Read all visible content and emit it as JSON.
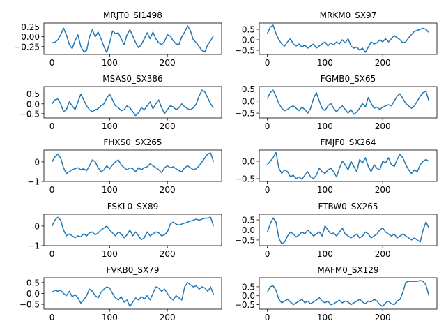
{
  "figure": {
    "line_color": "#1f77b4"
  },
  "chart_data": [
    {
      "type": "line",
      "title": "MRJT0_SI1498",
      "xlim": [
        -14,
        294
      ],
      "ylim": [
        -0.45,
        0.35
      ],
      "xticks": [
        0,
        100,
        200
      ],
      "yticks": [
        0.25,
        0.0,
        -0.25
      ],
      "yticklabels": [
        "0.25",
        "0.00",
        "−0.25"
      ],
      "x": [
        0,
        5,
        10,
        15,
        20,
        25,
        30,
        35,
        40,
        45,
        50,
        55,
        60,
        65,
        70,
        75,
        80,
        85,
        90,
        95,
        100,
        105,
        110,
        115,
        120,
        125,
        130,
        135,
        140,
        145,
        150,
        155,
        160,
        165,
        170,
        175,
        180,
        185,
        190,
        195,
        200,
        205,
        210,
        215,
        220,
        225,
        230,
        235,
        240,
        245,
        250,
        255,
        260,
        265,
        270,
        275,
        280
      ],
      "y": [
        -0.15,
        -0.14,
        -0.08,
        0.05,
        0.22,
        0.05,
        -0.2,
        -0.3,
        -0.1,
        0.05,
        -0.25,
        -0.38,
        -0.35,
        0.0,
        0.18,
        0.0,
        0.12,
        -0.05,
        -0.25,
        -0.4,
        -0.15,
        0.15,
        0.08,
        0.1,
        -0.05,
        -0.2,
        0.05,
        0.18,
        0.02,
        -0.15,
        -0.28,
        -0.2,
        -0.05,
        0.1,
        -0.05,
        0.12,
        -0.05,
        -0.15,
        -0.2,
        -0.12,
        0.05,
        0.02,
        -0.1,
        -0.18,
        -0.2,
        0.0,
        0.12,
        0.28,
        0.15,
        -0.08,
        -0.15,
        -0.25,
        -0.35,
        -0.38,
        -0.2,
        -0.1,
        0.03
      ]
    },
    {
      "type": "line",
      "title": "MRKM0_SX97",
      "xlim": [
        -14,
        294
      ],
      "ylim": [
        -0.7,
        0.8
      ],
      "xticks": [
        0,
        100,
        200
      ],
      "yticks": [
        0.5,
        0.0,
        -0.5
      ],
      "yticklabels": [
        "0.5",
        "0.0",
        "−0.5"
      ],
      "x": [
        0,
        5,
        10,
        15,
        20,
        25,
        30,
        35,
        40,
        45,
        50,
        55,
        60,
        65,
        70,
        75,
        80,
        85,
        90,
        95,
        100,
        105,
        110,
        115,
        120,
        125,
        130,
        135,
        140,
        145,
        150,
        155,
        160,
        165,
        170,
        175,
        180,
        185,
        190,
        195,
        200,
        205,
        210,
        215,
        220,
        225,
        230,
        235,
        240,
        245,
        250,
        255,
        260,
        265,
        270,
        275,
        280
      ],
      "y": [
        0.3,
        0.6,
        0.7,
        0.3,
        0.0,
        -0.2,
        -0.3,
        -0.1,
        0.05,
        -0.2,
        -0.3,
        -0.2,
        -0.35,
        -0.25,
        -0.4,
        -0.3,
        -0.2,
        -0.4,
        -0.3,
        -0.2,
        -0.1,
        -0.3,
        -0.15,
        -0.25,
        -0.1,
        -0.2,
        0.0,
        -0.15,
        0.05,
        -0.3,
        -0.4,
        -0.35,
        -0.5,
        -0.4,
        -0.6,
        -0.35,
        -0.1,
        -0.2,
        -0.15,
        0.0,
        -0.1,
        0.05,
        -0.1,
        0.05,
        0.2,
        0.1,
        0.0,
        -0.15,
        -0.1,
        0.1,
        0.25,
        0.4,
        0.45,
        0.5,
        0.55,
        0.5,
        0.35
      ]
    },
    {
      "type": "line",
      "title": "MSAS0_SX386",
      "xlim": [
        -14,
        294
      ],
      "ylim": [
        -0.72,
        0.88
      ],
      "xticks": [
        0,
        100,
        200
      ],
      "yticks": [
        0.5,
        0.0,
        -0.5
      ],
      "yticklabels": [
        "0.5",
        "0.0",
        "−0.5"
      ],
      "x": [
        0,
        5,
        10,
        15,
        20,
        25,
        30,
        35,
        40,
        45,
        50,
        55,
        60,
        65,
        70,
        75,
        80,
        85,
        90,
        95,
        100,
        105,
        110,
        115,
        120,
        125,
        130,
        135,
        140,
        145,
        150,
        155,
        160,
        165,
        170,
        175,
        180,
        185,
        190,
        195,
        200,
        205,
        210,
        215,
        220,
        225,
        230,
        235,
        240,
        245,
        250,
        255,
        260,
        265,
        270,
        275,
        280
      ],
      "y": [
        0.0,
        0.2,
        0.25,
        0.0,
        -0.4,
        -0.3,
        0.1,
        -0.1,
        -0.3,
        0.1,
        0.5,
        0.2,
        -0.1,
        -0.3,
        -0.4,
        -0.3,
        -0.25,
        -0.1,
        0.0,
        0.3,
        0.5,
        0.2,
        -0.1,
        -0.2,
        -0.35,
        -0.3,
        -0.1,
        -0.2,
        -0.4,
        -0.6,
        -0.45,
        -0.2,
        -0.3,
        -0.1,
        0.1,
        -0.25,
        0.0,
        0.2,
        -0.2,
        -0.5,
        -0.3,
        -0.1,
        -0.15,
        -0.3,
        -0.2,
        0.0,
        -0.15,
        -0.25,
        -0.3,
        -0.2,
        0.0,
        0.4,
        0.7,
        0.6,
        0.3,
        0.0,
        -0.2
      ]
    },
    {
      "type": "line",
      "title": "FGMB0_SX65",
      "xlim": [
        -14,
        294
      ],
      "ylim": [
        -0.7,
        0.6
      ],
      "xticks": [
        0,
        100,
        200
      ],
      "yticks": [
        0.5,
        0.0,
        -0.5
      ],
      "yticklabels": [
        "0.5",
        "0.0",
        "−0.5"
      ],
      "x": [
        0,
        5,
        10,
        15,
        20,
        25,
        30,
        35,
        40,
        45,
        50,
        55,
        60,
        65,
        70,
        75,
        80,
        85,
        90,
        95,
        100,
        105,
        110,
        115,
        120,
        125,
        130,
        135,
        140,
        145,
        150,
        155,
        160,
        165,
        170,
        175,
        180,
        185,
        190,
        195,
        200,
        205,
        210,
        215,
        220,
        225,
        230,
        235,
        240,
        245,
        250,
        255,
        260,
        265,
        270,
        275,
        280
      ],
      "y": [
        0.1,
        0.35,
        0.45,
        0.2,
        -0.1,
        -0.3,
        -0.4,
        -0.35,
        -0.25,
        -0.2,
        -0.3,
        -0.4,
        -0.25,
        -0.35,
        -0.5,
        -0.3,
        0.1,
        0.35,
        0.0,
        -0.3,
        -0.4,
        -0.2,
        -0.1,
        -0.3,
        -0.45,
        -0.3,
        -0.2,
        -0.35,
        -0.5,
        -0.35,
        -0.55,
        -0.45,
        -0.3,
        -0.1,
        -0.25,
        0.15,
        -0.1,
        -0.3,
        -0.25,
        -0.35,
        -0.25,
        -0.2,
        -0.15,
        -0.2,
        0.0,
        0.2,
        0.3,
        0.1,
        -0.1,
        -0.2,
        -0.3,
        -0.2,
        0.0,
        0.2,
        0.35,
        0.4,
        0.0
      ]
    },
    {
      "type": "line",
      "title": "FHXS0_SX265",
      "xlim": [
        -14,
        294
      ],
      "ylim": [
        -1.0,
        0.6
      ],
      "xticks": [
        0,
        100,
        200
      ],
      "yticks": [
        0.0,
        -1.0
      ],
      "yticklabels": [
        "0",
        "−1"
      ],
      "x": [
        0,
        5,
        10,
        15,
        20,
        25,
        30,
        35,
        40,
        45,
        50,
        55,
        60,
        65,
        70,
        75,
        80,
        85,
        90,
        95,
        100,
        105,
        110,
        115,
        120,
        125,
        130,
        135,
        140,
        145,
        150,
        155,
        160,
        165,
        170,
        175,
        180,
        185,
        190,
        195,
        200,
        205,
        210,
        215,
        220,
        225,
        230,
        235,
        240,
        245,
        250,
        255,
        260,
        265,
        270,
        275,
        280
      ],
      "y": [
        0.0,
        0.25,
        0.4,
        0.2,
        -0.3,
        -0.6,
        -0.5,
        -0.4,
        -0.35,
        -0.3,
        -0.4,
        -0.35,
        -0.45,
        -0.2,
        0.1,
        0.0,
        -0.3,
        -0.5,
        -0.4,
        -0.2,
        -0.35,
        -0.15,
        0.0,
        0.1,
        -0.15,
        -0.3,
        -0.4,
        -0.3,
        -0.35,
        -0.5,
        -0.3,
        -0.4,
        -0.3,
        -0.25,
        -0.1,
        -0.2,
        -0.3,
        -0.4,
        -0.55,
        -0.3,
        -0.2,
        -0.3,
        -0.25,
        -0.35,
        -0.45,
        -0.5,
        -0.3,
        -0.2,
        -0.3,
        -0.4,
        -0.35,
        -0.2,
        0.0,
        0.2,
        0.4,
        0.45,
        0.0
      ]
    },
    {
      "type": "line",
      "title": "FMJF0_SX264",
      "xlim": [
        -14,
        294
      ],
      "ylim": [
        -0.58,
        0.32
      ],
      "xticks": [
        0,
        100,
        200
      ],
      "yticks": [
        0.0,
        -0.5
      ],
      "yticklabels": [
        "0.0",
        "−0.5"
      ],
      "x": [
        0,
        5,
        10,
        15,
        20,
        25,
        30,
        35,
        40,
        45,
        50,
        55,
        60,
        65,
        70,
        75,
        80,
        85,
        90,
        95,
        100,
        105,
        110,
        115,
        120,
        125,
        130,
        135,
        140,
        145,
        150,
        155,
        160,
        165,
        170,
        175,
        180,
        185,
        190,
        195,
        200,
        205,
        210,
        215,
        220,
        225,
        230,
        235,
        240,
        245,
        250,
        255,
        260,
        265,
        270,
        275,
        280
      ],
      "y": [
        -0.1,
        0.0,
        0.1,
        0.25,
        -0.2,
        -0.35,
        -0.25,
        -0.3,
        -0.45,
        -0.4,
        -0.5,
        -0.45,
        -0.52,
        -0.4,
        -0.3,
        -0.45,
        -0.5,
        -0.4,
        -0.2,
        -0.3,
        -0.35,
        -0.25,
        -0.2,
        -0.3,
        -0.45,
        -0.2,
        0.0,
        -0.1,
        -0.25,
        0.0,
        -0.15,
        -0.3,
        0.05,
        -0.05,
        0.1,
        -0.15,
        -0.3,
        -0.1,
        -0.2,
        -0.25,
        0.0,
        -0.05,
        0.1,
        -0.1,
        -0.15,
        0.05,
        0.2,
        0.1,
        -0.1,
        -0.25,
        -0.35,
        -0.25,
        -0.3,
        -0.1,
        0.0,
        0.05,
        0.0
      ]
    },
    {
      "type": "line",
      "title": "FSKL0_SX89",
      "xlim": [
        -14,
        294
      ],
      "ylim": [
        -1.0,
        0.6
      ],
      "xticks": [
        0,
        100,
        200
      ],
      "yticks": [
        0.0,
        -1.0
      ],
      "yticklabels": [
        "0",
        "−1"
      ],
      "x": [
        0,
        5,
        10,
        15,
        20,
        25,
        30,
        35,
        40,
        45,
        50,
        55,
        60,
        65,
        70,
        75,
        80,
        85,
        90,
        95,
        100,
        105,
        110,
        115,
        120,
        125,
        130,
        135,
        140,
        145,
        150,
        155,
        160,
        165,
        170,
        175,
        180,
        185,
        190,
        195,
        200,
        205,
        210,
        215,
        220,
        225,
        230,
        235,
        240,
        245,
        250,
        255,
        260,
        265,
        270,
        275,
        280
      ],
      "y": [
        0.0,
        0.3,
        0.45,
        0.3,
        -0.2,
        -0.5,
        -0.4,
        -0.5,
        -0.6,
        -0.5,
        -0.55,
        -0.4,
        -0.5,
        -0.35,
        -0.3,
        -0.45,
        -0.35,
        -0.2,
        -0.1,
        0.0,
        -0.2,
        -0.35,
        -0.5,
        -0.3,
        -0.4,
        -0.6,
        -0.45,
        -0.2,
        -0.5,
        -0.3,
        -0.5,
        -0.7,
        -0.6,
        -0.3,
        -0.5,
        -0.4,
        -0.3,
        -0.35,
        -0.5,
        -0.45,
        -0.3,
        0.1,
        0.2,
        0.1,
        0.05,
        0.1,
        0.15,
        0.2,
        0.25,
        0.3,
        0.35,
        0.3,
        0.35,
        0.4,
        0.4,
        0.45,
        0.0
      ]
    },
    {
      "type": "line",
      "title": "FTBW0_SX265",
      "xlim": [
        -14,
        294
      ],
      "ylim": [
        -0.78,
        0.78
      ],
      "xticks": [
        0,
        100,
        200
      ],
      "yticks": [
        0.5,
        0.0,
        -0.5
      ],
      "yticklabels": [
        "0.5",
        "0.0",
        "−0.5"
      ],
      "x": [
        0,
        5,
        10,
        15,
        20,
        25,
        30,
        35,
        40,
        45,
        50,
        55,
        60,
        65,
        70,
        75,
        80,
        85,
        90,
        95,
        100,
        105,
        110,
        115,
        120,
        125,
        130,
        135,
        140,
        145,
        150,
        155,
        160,
        165,
        170,
        175,
        180,
        185,
        190,
        195,
        200,
        205,
        210,
        215,
        220,
        225,
        230,
        235,
        240,
        245,
        250,
        255,
        260,
        265,
        270,
        275,
        280
      ],
      "y": [
        -0.1,
        0.3,
        0.6,
        0.4,
        -0.4,
        -0.7,
        -0.6,
        -0.3,
        -0.1,
        -0.2,
        -0.35,
        -0.25,
        -0.1,
        -0.2,
        0.0,
        -0.15,
        -0.3,
        -0.2,
        -0.1,
        -0.3,
        0.2,
        0.0,
        -0.2,
        -0.15,
        -0.3,
        -0.1,
        0.1,
        -0.2,
        -0.3,
        -0.4,
        -0.3,
        -0.2,
        -0.4,
        -0.3,
        -0.1,
        -0.2,
        -0.4,
        -0.3,
        -0.2,
        0.0,
        0.1,
        -0.1,
        -0.2,
        -0.3,
        -0.2,
        -0.4,
        -0.3,
        -0.2,
        -0.3,
        -0.4,
        -0.5,
        -0.4,
        -0.5,
        -0.6,
        0.0,
        0.4,
        0.1
      ]
    },
    {
      "type": "line",
      "title": "FVKB0_SX79",
      "xlim": [
        -14,
        294
      ],
      "ylim": [
        -0.72,
        0.72
      ],
      "xticks": [
        0,
        100,
        200
      ],
      "yticks": [
        0.5,
        0.0,
        -0.5
      ],
      "yticklabels": [
        "0.5",
        "0.0",
        "−0.5"
      ],
      "x": [
        0,
        5,
        10,
        15,
        20,
        25,
        30,
        35,
        40,
        45,
        50,
        55,
        60,
        65,
        70,
        75,
        80,
        85,
        90,
        95,
        100,
        105,
        110,
        115,
        120,
        125,
        130,
        135,
        140,
        145,
        150,
        155,
        160,
        165,
        170,
        175,
        180,
        185,
        190,
        195,
        200,
        205,
        210,
        215,
        220,
        225,
        230,
        235,
        240,
        245,
        250,
        255,
        260,
        265,
        270,
        275,
        280
      ],
      "y": [
        0.05,
        0.15,
        0.1,
        0.15,
        0.0,
        -0.1,
        0.1,
        -0.15,
        -0.05,
        -0.2,
        -0.45,
        -0.3,
        -0.1,
        0.2,
        0.1,
        -0.1,
        -0.2,
        0.05,
        0.2,
        0.3,
        0.25,
        0.0,
        -0.2,
        -0.3,
        -0.15,
        -0.4,
        -0.3,
        -0.6,
        -0.4,
        -0.2,
        -0.3,
        -0.15,
        -0.25,
        -0.1,
        -0.3,
        0.0,
        0.3,
        0.25,
        0.1,
        0.2,
        0.0,
        -0.2,
        -0.3,
        -0.1,
        -0.2,
        -0.3,
        0.3,
        0.5,
        0.4,
        0.3,
        0.35,
        0.2,
        0.3,
        0.25,
        0.1,
        0.3,
        -0.05
      ]
    },
    {
      "type": "line",
      "title": "MAFM0_SX129",
      "xlim": [
        -14,
        294
      ],
      "ylim": [
        -0.75,
        1.0
      ],
      "xticks": [
        0,
        100,
        200
      ],
      "yticks": [
        0.5,
        0.0,
        -0.5
      ],
      "yticklabels": [
        "0.5",
        "0.0",
        "−0.5"
      ],
      "x": [
        0,
        5,
        10,
        15,
        20,
        25,
        30,
        35,
        40,
        45,
        50,
        55,
        60,
        65,
        70,
        75,
        80,
        85,
        90,
        95,
        100,
        105,
        110,
        115,
        120,
        125,
        130,
        135,
        140,
        145,
        150,
        155,
        160,
        165,
        170,
        175,
        180,
        185,
        190,
        195,
        200,
        205,
        210,
        215,
        220,
        225,
        230,
        235,
        240,
        245,
        250,
        255,
        260,
        265,
        270,
        275,
        280
      ],
      "y": [
        0.2,
        0.5,
        0.55,
        0.3,
        -0.2,
        -0.4,
        -0.3,
        -0.2,
        -0.35,
        -0.5,
        -0.4,
        -0.3,
        -0.2,
        -0.4,
        -0.3,
        -0.45,
        -0.35,
        -0.25,
        -0.1,
        -0.3,
        -0.4,
        -0.3,
        -0.5,
        -0.45,
        -0.35,
        -0.25,
        -0.4,
        -0.3,
        -0.35,
        -0.5,
        -0.4,
        -0.3,
        -0.2,
        -0.35,
        -0.45,
        -0.3,
        -0.35,
        -0.2,
        -0.3,
        -0.5,
        -0.6,
        -0.4,
        -0.3,
        -0.45,
        -0.5,
        -0.3,
        -0.2,
        0.2,
        0.75,
        0.8,
        0.8,
        0.8,
        0.8,
        0.85,
        0.8,
        0.6,
        0.0
      ]
    }
  ]
}
